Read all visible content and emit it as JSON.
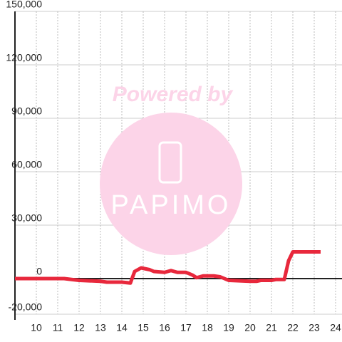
{
  "chart_data": {
    "type": "line",
    "x": [
      9,
      11,
      11.3,
      12,
      13,
      13.3,
      14,
      14.4,
      14.6,
      14.9,
      15.3,
      15.5,
      16,
      16.3,
      16.6,
      17,
      17.3,
      17.5,
      17.8,
      18.3,
      18.6,
      19,
      20,
      20.3,
      20.5,
      21,
      21.2,
      21.6,
      21.8,
      22,
      22.3,
      23.3
    ],
    "series": [
      {
        "color": "#e8283c",
        "values": [
          0,
          0,
          0,
          -1000,
          -1500,
          -2000,
          -2000,
          -2500,
          4000,
          6000,
          5000,
          4000,
          3500,
          4500,
          3500,
          3500,
          2000,
          500,
          1500,
          1500,
          1000,
          -1000,
          -1500,
          -1500,
          -1000,
          -1000,
          -500,
          -500,
          10000,
          15000,
          15000,
          15000
        ]
      }
    ],
    "xlim": [
      9,
      24.3
    ],
    "xticks": [
      10,
      11,
      12,
      13,
      14,
      15,
      16,
      17,
      18,
      19,
      20,
      21,
      22,
      23,
      24
    ],
    "ylim": [
      -20000,
      150000
    ],
    "yticks": [
      {
        "value": -20000,
        "label": "-20,000"
      },
      0,
      {
        "value": 30000,
        "label": "30,000"
      },
      {
        "value": 60000,
        "label": "60,000"
      },
      {
        "value": 90000,
        "label": "90,000"
      },
      {
        "value": 120000,
        "label": "120,000"
      },
      {
        "value": 150000,
        "label": "150,000"
      }
    ],
    "grid": true
  },
  "watermark": {
    "text": "Powered by",
    "brand": "PAPIMO"
  }
}
